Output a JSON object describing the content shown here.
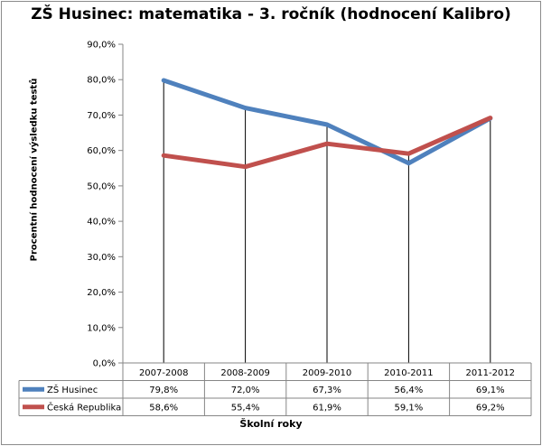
{
  "chart_data": {
    "type": "line",
    "title": "ZŠ Husinec: matematika - 3. ročník (hodnocení Kalibro)",
    "xlabel": "Školní roky",
    "ylabel": "Procentní hodnocení výsledku testů",
    "categories": [
      "2007-2008",
      "2008-2009",
      "2009-2010",
      "2010-2011",
      "2011-2012"
    ],
    "ylim": [
      0,
      90
    ],
    "ytick_step": 10,
    "grid": false,
    "legend": "data-table",
    "series": [
      {
        "name": "ZŠ Husinec",
        "color": "#4f81bd",
        "values": [
          79.8,
          72.0,
          67.3,
          56.4,
          69.1
        ],
        "labels": [
          "79,8%",
          "72,0%",
          "67,3%",
          "56,4%",
          "69,1%"
        ]
      },
      {
        "name": "Česká Republika",
        "color": "#c0504d",
        "values": [
          58.6,
          55.4,
          61.9,
          59.1,
          69.2
        ],
        "labels": [
          "58,6%",
          "55,4%",
          "61,9%",
          "59,1%",
          "69,2%"
        ]
      }
    ]
  }
}
